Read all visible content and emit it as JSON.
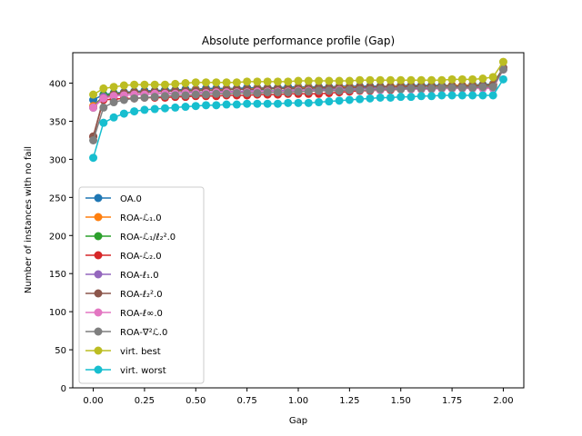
{
  "chart_data": {
    "type": "line",
    "title": "Absolute performance profile (Gap)",
    "xlabel": "Gap",
    "ylabel": "Number of instances with no fail",
    "xlim": [
      -0.1,
      2.1
    ],
    "ylim": [
      0,
      440
    ],
    "xticks": [
      0.0,
      0.25,
      0.5,
      0.75,
      1.0,
      1.25,
      1.5,
      1.75,
      2.0
    ],
    "xtick_labels": [
      "0.00",
      "0.25",
      "0.50",
      "0.75",
      "1.00",
      "1.25",
      "1.50",
      "1.75",
      "2.00"
    ],
    "yticks": [
      0,
      50,
      100,
      150,
      200,
      250,
      300,
      350,
      400
    ],
    "ytick_labels": [
      "0",
      "50",
      "100",
      "150",
      "200",
      "250",
      "300",
      "350",
      "400"
    ],
    "grid": false,
    "legend_position": "lower-left",
    "x": [
      0.0,
      0.05,
      0.1,
      0.15,
      0.2,
      0.25,
      0.3,
      0.35,
      0.4,
      0.45,
      0.5,
      0.55,
      0.6,
      0.65,
      0.7,
      0.75,
      0.8,
      0.85,
      0.9,
      0.95,
      1.0,
      1.05,
      1.1,
      1.15,
      1.2,
      1.25,
      1.3,
      1.35,
      1.4,
      1.45,
      1.5,
      1.55,
      1.6,
      1.65,
      1.7,
      1.75,
      1.8,
      1.85,
      1.9,
      1.95,
      2.0
    ],
    "series": [
      {
        "name": "OA.0",
        "color": "#1f77b4",
        "values": [
          378,
          385,
          387,
          388,
          389,
          390,
          390,
          391,
          391,
          392,
          392,
          393,
          393,
          393,
          393,
          394,
          394,
          394,
          394,
          395,
          395,
          395,
          395,
          395,
          396,
          396,
          396,
          396,
          396,
          396,
          397,
          397,
          397,
          397,
          397,
          397,
          397,
          398,
          398,
          399,
          420
        ]
      },
      {
        "name": "ROA-ℒ₁.0",
        "color": "#ff7f0e",
        "values": [
          370,
          383,
          386,
          387,
          388,
          388,
          389,
          389,
          390,
          390,
          391,
          391,
          391,
          392,
          392,
          392,
          393,
          393,
          393,
          393,
          394,
          394,
          394,
          394,
          395,
          395,
          395,
          395,
          395,
          396,
          396,
          396,
          396,
          396,
          396,
          397,
          397,
          397,
          397,
          398,
          420
        ]
      },
      {
        "name": "ROA-ℒ₁/ℓ₂².0",
        "color": "#2ca02c",
        "values": [
          368,
          384,
          386,
          387,
          388,
          388,
          389,
          389,
          390,
          390,
          390,
          391,
          391,
          391,
          392,
          392,
          392,
          392,
          393,
          393,
          393,
          393,
          394,
          394,
          394,
          394,
          394,
          395,
          395,
          395,
          395,
          395,
          396,
          396,
          396,
          396,
          396,
          396,
          397,
          397,
          420
        ]
      },
      {
        "name": "ROA-ℒ₂.0",
        "color": "#d62728",
        "values": [
          330,
          378,
          379,
          380,
          380,
          381,
          381,
          381,
          382,
          382,
          383,
          383,
          383,
          384,
          384,
          384,
          385,
          385,
          385,
          386,
          386,
          386,
          386,
          387,
          388,
          389,
          390,
          390,
          391,
          391,
          392,
          392,
          392,
          393,
          393,
          393,
          394,
          394,
          394,
          395,
          420
        ]
      },
      {
        "name": "ROA-ℓ₁.0",
        "color": "#9467bd",
        "values": [
          368,
          382,
          384,
          385,
          385,
          386,
          386,
          387,
          387,
          388,
          388,
          388,
          389,
          389,
          389,
          390,
          390,
          390,
          390,
          391,
          391,
          391,
          392,
          392,
          392,
          392,
          393,
          393,
          393,
          393,
          393,
          394,
          394,
          394,
          394,
          394,
          395,
          395,
          395,
          395,
          418
        ]
      },
      {
        "name": "ROA-ℓ₂².0",
        "color": "#8c564b",
        "values": [
          330,
          380,
          385,
          387,
          388,
          388,
          389,
          389,
          390,
          390,
          390,
          391,
          391,
          391,
          392,
          392,
          392,
          393,
          393,
          393,
          393,
          393,
          394,
          394,
          394,
          394,
          395,
          395,
          395,
          395,
          395,
          396,
          396,
          396,
          396,
          396,
          396,
          396,
          397,
          397,
          420
        ]
      },
      {
        "name": "ROA-ℓ∞.0",
        "color": "#e377c2",
        "values": [
          368,
          380,
          383,
          384,
          385,
          385,
          386,
          386,
          386,
          387,
          387,
          387,
          388,
          388,
          388,
          388,
          389,
          389,
          389,
          389,
          390,
          390,
          390,
          390,
          391,
          391,
          391,
          391,
          391,
          392,
          392,
          392,
          392,
          392,
          393,
          393,
          393,
          393,
          393,
          393,
          418
        ]
      },
      {
        "name": "ROA-∇²ℒ.0",
        "color": "#7f7f7f",
        "values": [
          325,
          368,
          375,
          378,
          380,
          381,
          382,
          383,
          384,
          384,
          385,
          385,
          386,
          386,
          387,
          387,
          387,
          388,
          388,
          388,
          389,
          389,
          390,
          390,
          390,
          391,
          391,
          391,
          392,
          392,
          392,
          393,
          393,
          393,
          394,
          394,
          394,
          394,
          395,
          395,
          418
        ]
      },
      {
        "name": "virt. best",
        "color": "#bcbd22",
        "values": [
          385,
          393,
          395,
          397,
          398,
          398,
          398,
          398,
          399,
          400,
          401,
          401,
          401,
          401,
          401,
          402,
          402,
          402,
          402,
          402,
          403,
          403,
          403,
          403,
          403,
          403,
          404,
          404,
          404,
          404,
          404,
          404,
          404,
          404,
          404,
          405,
          405,
          405,
          406,
          408,
          428
        ]
      },
      {
        "name": "virt. worst",
        "color": "#17becf",
        "values": [
          302,
          348,
          355,
          360,
          363,
          365,
          366,
          367,
          368,
          369,
          370,
          371,
          371,
          372,
          372,
          373,
          373,
          373,
          373,
          374,
          374,
          374,
          375,
          376,
          377,
          378,
          379,
          380,
          381,
          381,
          382,
          382,
          383,
          383,
          384,
          384,
          384,
          384,
          384,
          384,
          405
        ]
      }
    ]
  }
}
